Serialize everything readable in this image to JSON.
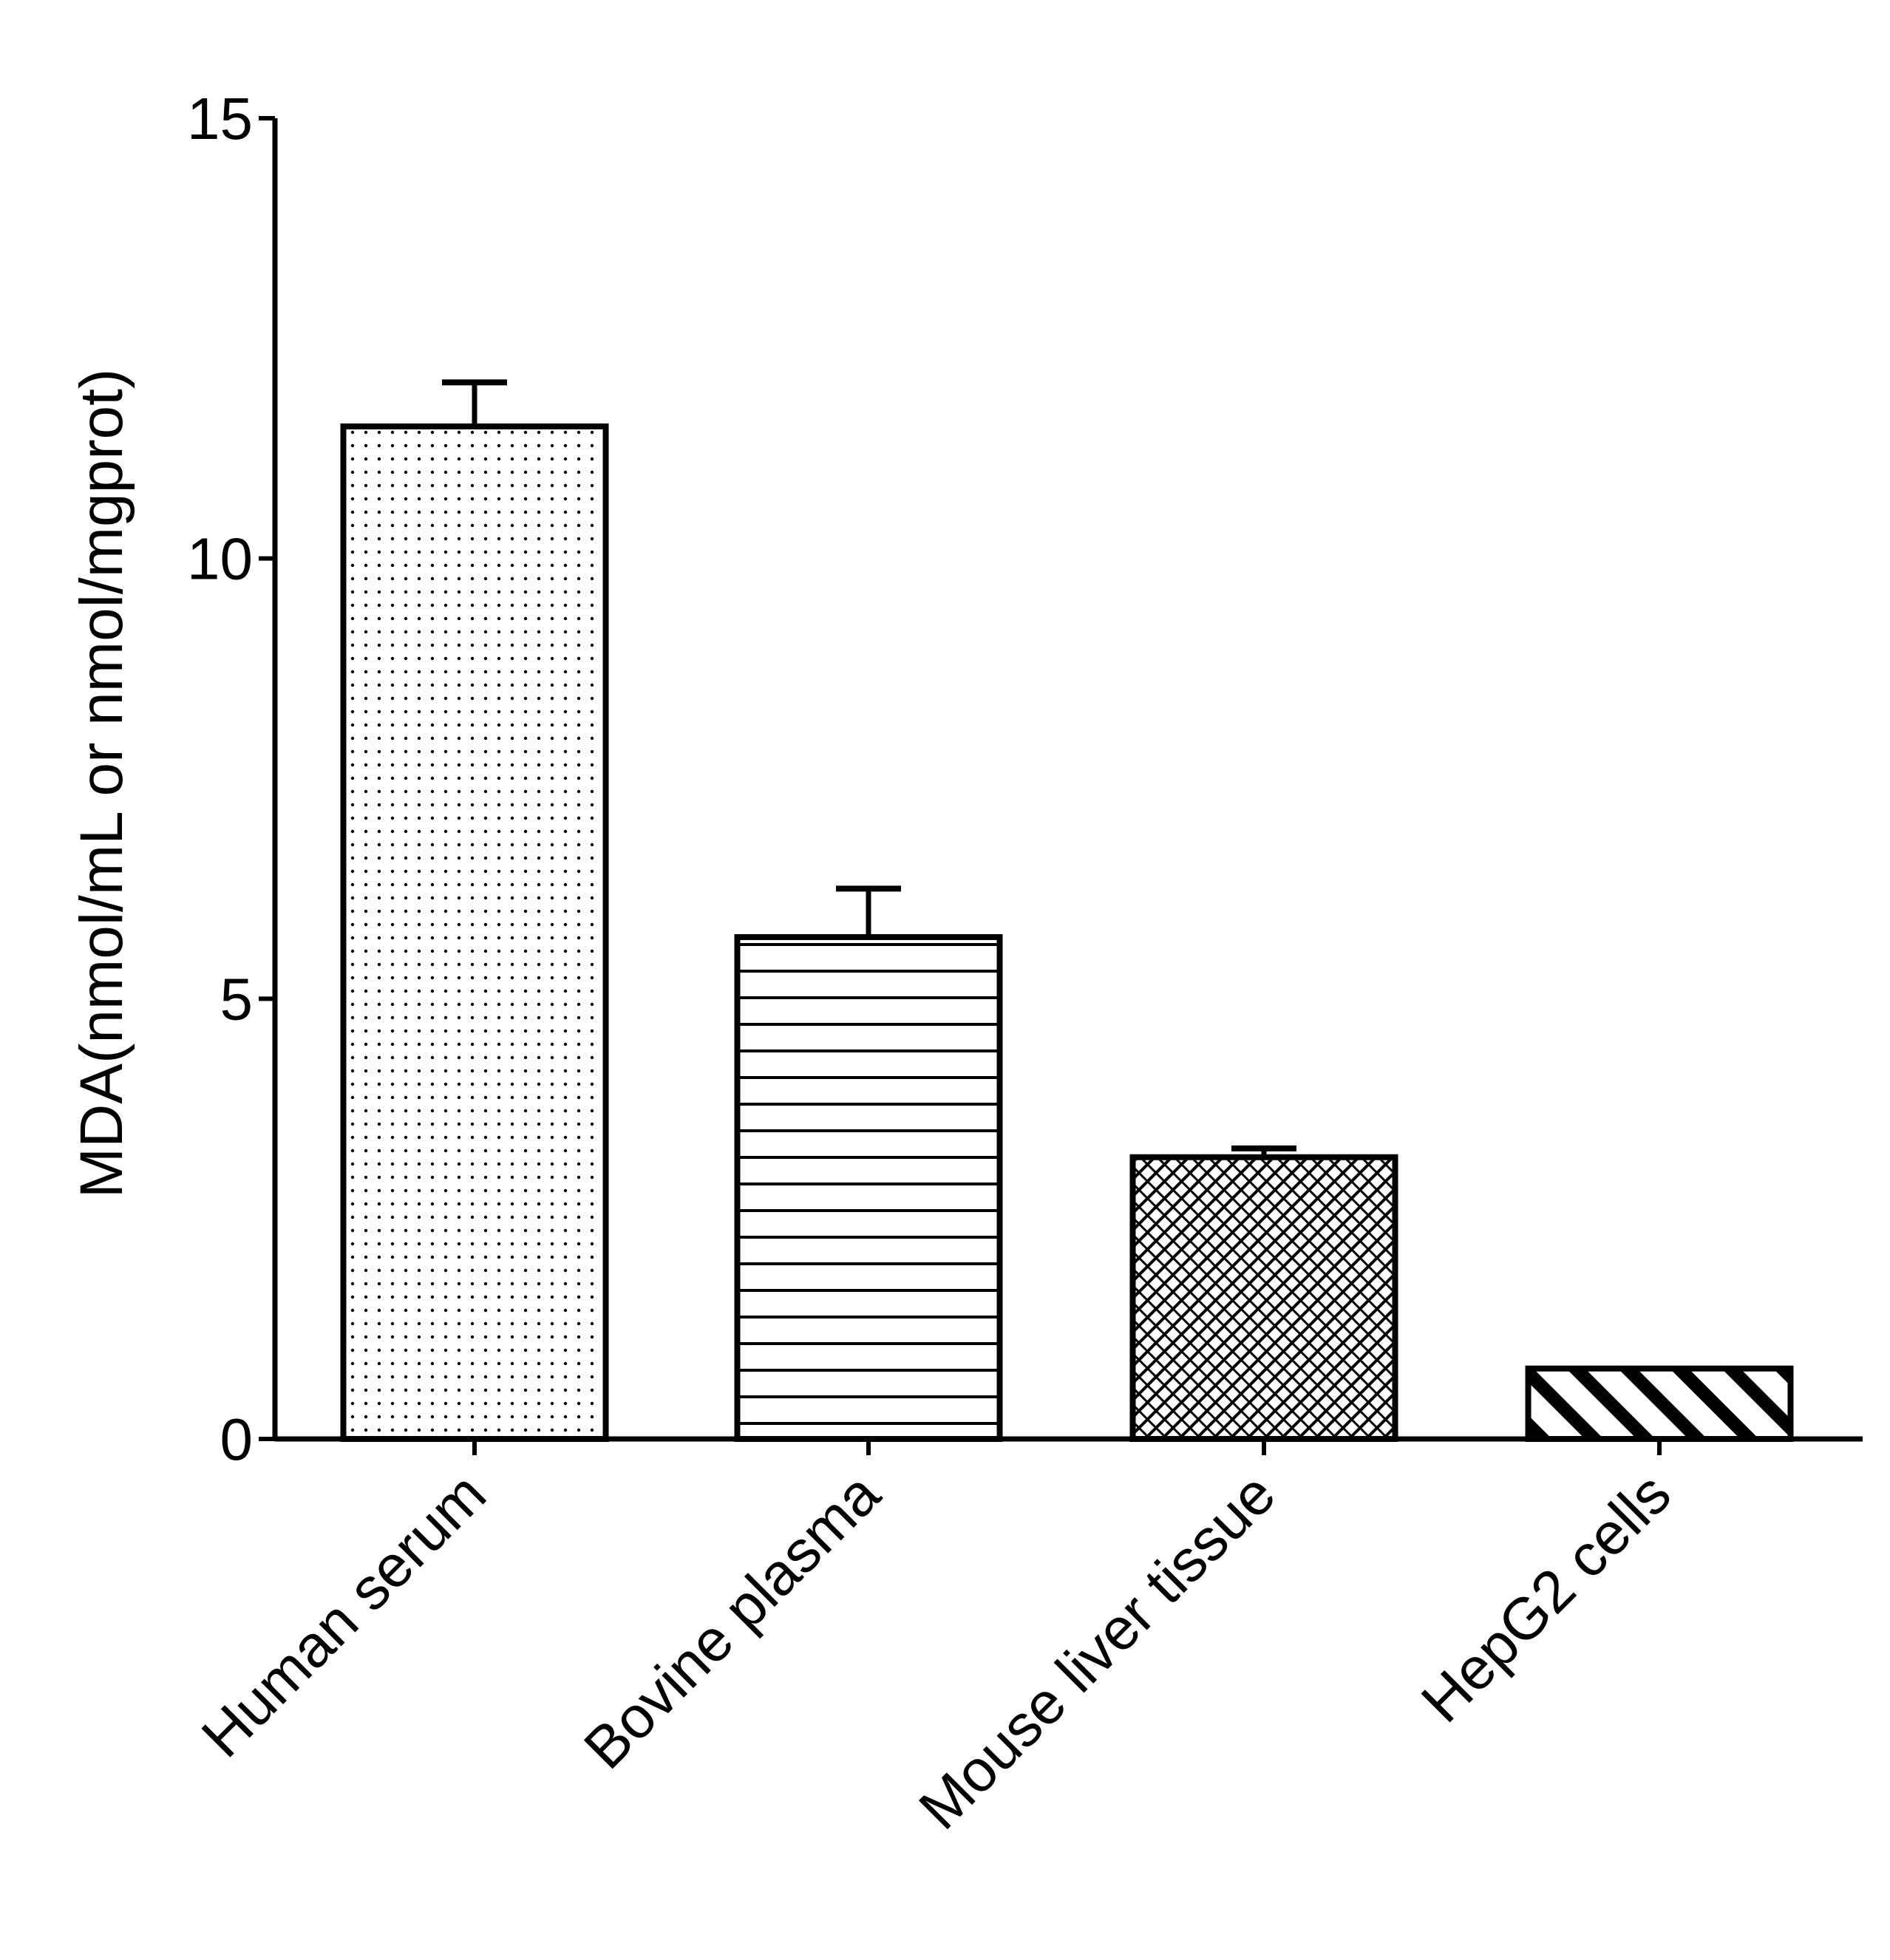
{
  "chart_data": {
    "type": "bar",
    "title": "",
    "xlabel": "",
    "ylabel": "MDA(nmol/mL or nmol/mgprot)",
    "categories": [
      "Human serum",
      "Bovine plasma",
      "Mouse liver tissue",
      "HepG2 cells"
    ],
    "values": [
      11.5,
      5.7,
      3.2,
      0.8
    ],
    "error": [
      0.5,
      0.55,
      0.1,
      0.0
    ],
    "patterns": [
      "dots",
      "horizontal-lines",
      "crosshatch",
      "diagonal-stripes"
    ],
    "ylim": [
      0,
      15
    ],
    "yticks": [
      0,
      5,
      10,
      15
    ],
    "ytick_labels": [
      "0",
      "5",
      "10",
      "15"
    ],
    "grid": false,
    "legend": "none",
    "colors": {
      "stroke": "#000000",
      "fill": "#ffffff"
    }
  }
}
